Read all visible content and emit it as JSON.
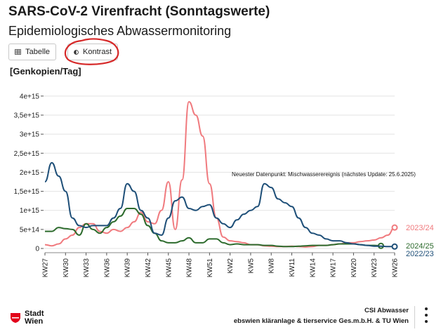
{
  "header": {
    "title": "SARS-CoV-2 Virenfracht (Sonntagswerte)",
    "subtitle": "Epidemiologisches Abwassermonitoring"
  },
  "toolbar": {
    "table_label": "Tabelle",
    "contrast_label": "Kontrast",
    "table_icon": "table-icon",
    "contrast_icon": "contrast-icon"
  },
  "footer": {
    "logo_line1": "Stadt",
    "logo_line2": "Wien",
    "credit_line1": "CSI Abwasser",
    "credit_line2": "ebswien kläranlage & tierservice Ges.m.b.H. & TU Wien",
    "menu_icon": "kebab-menu-icon"
  },
  "chart_data": {
    "type": "line",
    "ylabel": "[Genkopien/Tag]",
    "ylim": [
      0,
      4200000000000000.0
    ],
    "yticks": [
      {
        "value": 0,
        "label": "0"
      },
      {
        "value": 500000000000000.0,
        "label": "5e+14"
      },
      {
        "value": 1000000000000000.0,
        "label": "1e+15"
      },
      {
        "value": 1500000000000000.0,
        "label": "1,5e+15"
      },
      {
        "value": 2000000000000000.0,
        "label": "2e+15"
      },
      {
        "value": 2500000000000000.0,
        "label": "2,5e+15"
      },
      {
        "value": 3000000000000000.0,
        "label": "3e+15"
      },
      {
        "value": 3500000000000000.0,
        "label": "3,5e+15"
      },
      {
        "value": 4000000000000000.0,
        "label": "4e+15"
      }
    ],
    "x_week_order": [
      "KW27",
      "KW28",
      "KW29",
      "KW30",
      "KW31",
      "KW32",
      "KW33",
      "KW34",
      "KW35",
      "KW36",
      "KW37",
      "KW38",
      "KW39",
      "KW40",
      "KW41",
      "KW42",
      "KW43",
      "KW44",
      "KW45",
      "KW46",
      "KW47",
      "KW48",
      "KW49",
      "KW50",
      "KW51",
      "KW52",
      "KW1",
      "KW2",
      "KW3",
      "KW4",
      "KW5",
      "KW6",
      "KW7",
      "KW8",
      "KW9",
      "KW10",
      "KW11",
      "KW12",
      "KW13",
      "KW14",
      "KW15",
      "KW16",
      "KW17",
      "KW18",
      "KW19",
      "KW20",
      "KW21",
      "KW22",
      "KW23",
      "KW24",
      "KW25",
      "KW26"
    ],
    "xticks": [
      "KW27",
      "KW30",
      "KW33",
      "KW36",
      "KW39",
      "KW42",
      "KW45",
      "KW48",
      "KW51",
      "KW2",
      "KW5",
      "KW8",
      "KW11",
      "KW14",
      "KW17",
      "KW20",
      "KW23",
      "KW26"
    ],
    "grid": "horizontal",
    "annotation": "Neuester Datenpunkt: Mischwasserereignis (nächstes Update: 25.6.2025)",
    "series": [
      {
        "name": "2023/24",
        "color": "#f07a7e",
        "values": [
          100000000000000.0,
          70000000000000.0,
          120000000000000.0,
          250000000000000.0,
          350000000000000.0,
          550000000000000.0,
          650000000000000.0,
          650000000000000.0,
          450000000000000.0,
          400000000000000.0,
          500000000000000.0,
          450000000000000.0,
          550000000000000.0,
          700000000000000.0,
          950000000000000.0,
          700000000000000.0,
          650000000000000.0,
          1000000000000000.0,
          1750000000000000.0,
          500000000000000.0,
          1800000000000000.0,
          3850000000000000.0,
          3500000000000000.0,
          2950000000000000.0,
          1700000000000000.0,
          800000000000000.0,
          300000000000000.0,
          200000000000000.0,
          180000000000000.0,
          150000000000000.0,
          100000000000000.0,
          100000000000000.0,
          70000000000000.0,
          60000000000000.0,
          50000000000000.0,
          50000000000000.0,
          60000000000000.0,
          50000000000000.0,
          40000000000000.0,
          50000000000000.0,
          80000000000000.0,
          80000000000000.0,
          100000000000000.0,
          120000000000000.0,
          150000000000000.0,
          150000000000000.0,
          180000000000000.0,
          200000000000000.0,
          220000000000000.0,
          280000000000000.0,
          350000000000000.0,
          550000000000000.0
        ]
      },
      {
        "name": "2024/25",
        "color": "#2d6b2d",
        "values": [
          450000000000000.0,
          450000000000000.0,
          550000000000000.0,
          520000000000000.0,
          500000000000000.0,
          350000000000000.0,
          650000000000000.0,
          500000000000000.0,
          400000000000000.0,
          550000000000000.0,
          700000000000000.0,
          850000000000000.0,
          1050000000000000.0,
          1050000000000000.0,
          900000000000000.0,
          600000000000000.0,
          400000000000000.0,
          200000000000000.0,
          150000000000000.0,
          150000000000000.0,
          200000000000000.0,
          280000000000000.0,
          150000000000000.0,
          150000000000000.0,
          250000000000000.0,
          250000000000000.0,
          150000000000000.0,
          100000000000000.0,
          120000000000000.0,
          100000000000000.0,
          100000000000000.0,
          100000000000000.0,
          80000000000000.0,
          80000000000000.0,
          60000000000000.0,
          50000000000000.0,
          50000000000000.0,
          60000000000000.0,
          70000000000000.0,
          80000000000000.0,
          80000000000000.0,
          80000000000000.0,
          100000000000000.0,
          120000000000000.0,
          120000000000000.0,
          120000000000000.0,
          100000000000000.0,
          80000000000000.0,
          80000000000000.0,
          70000000000000.0
        ]
      },
      {
        "name": "2022/23",
        "color": "#1e4f78",
        "values": [
          1750000000000000.0,
          2250000000000000.0,
          1900000000000000.0,
          1500000000000000.0,
          800000000000000.0,
          600000000000000.0,
          550000000000000.0,
          600000000000000.0,
          600000000000000.0,
          600000000000000.0,
          800000000000000.0,
          1050000000000000.0,
          1700000000000000.0,
          1500000000000000.0,
          1000000000000000.0,
          800000000000000.0,
          400000000000000.0,
          350000000000000.0,
          800000000000000.0,
          1250000000000000.0,
          1350000000000000.0,
          1050000000000000.0,
          1000000000000000.0,
          1100000000000000.0,
          1150000000000000.0,
          800000000000000.0,
          650000000000000.0,
          550000000000000.0,
          750000000000000.0,
          900000000000000.0,
          1000000000000000.0,
          1100000000000000.0,
          1700000000000000.0,
          1600000000000000.0,
          1300000000000000.0,
          1200000000000000.0,
          1100000000000000.0,
          800000000000000.0,
          550000000000000.0,
          400000000000000.0,
          350000000000000.0,
          250000000000000.0,
          200000000000000.0,
          200000000000000.0,
          150000000000000.0,
          120000000000000.0,
          100000000000000.0,
          80000000000000.0,
          60000000000000.0,
          60000000000000.0,
          50000000000000.0,
          50000000000000.0
        ]
      }
    ]
  }
}
